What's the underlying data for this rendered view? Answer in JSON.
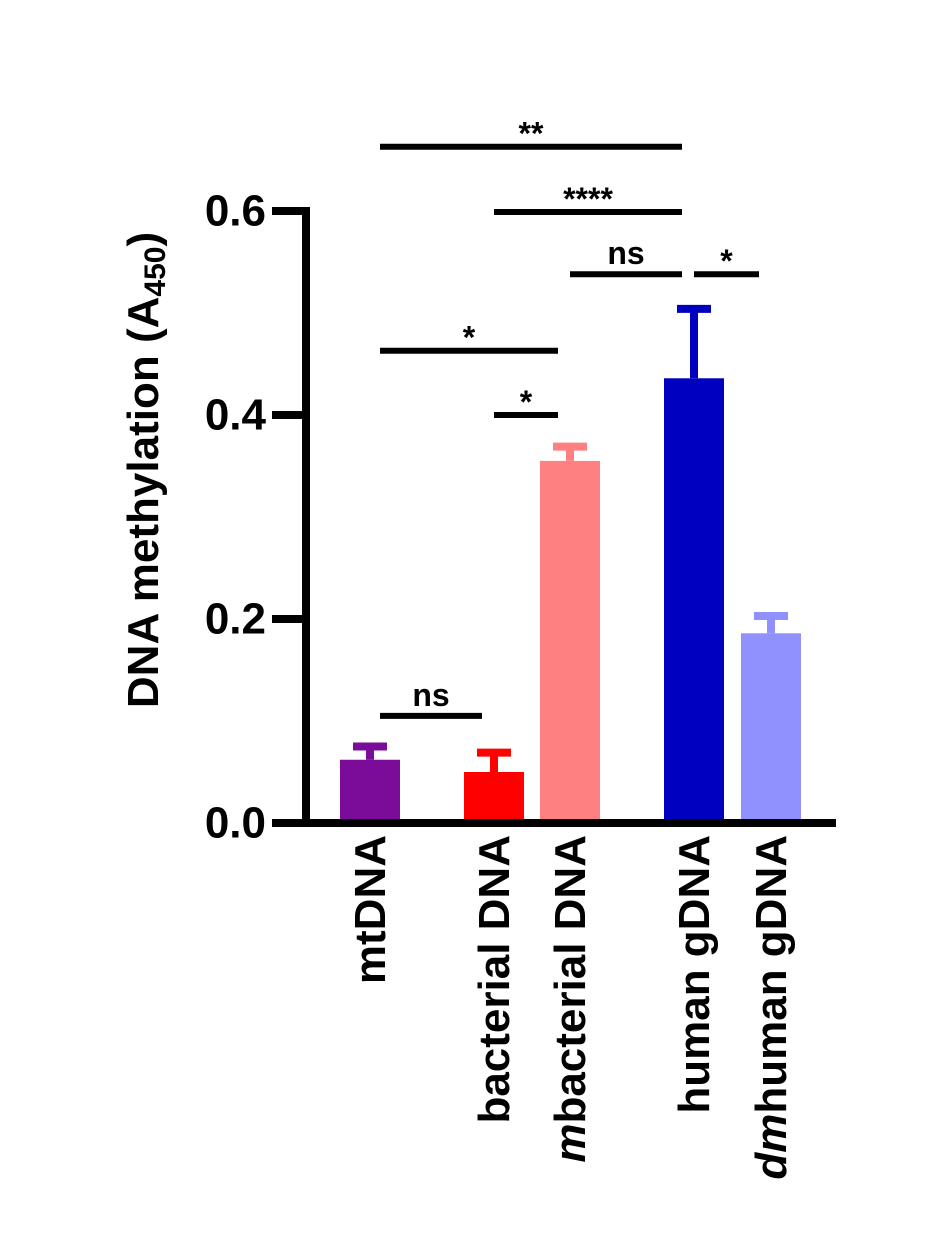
{
  "chart_data": {
    "type": "bar",
    "title": "",
    "ylabel": {
      "main": "DNA methylation (A",
      "sub": "450",
      "close": ")"
    },
    "xlabel": "",
    "ylim": [
      0,
      0.6
    ],
    "yticks": [
      "0.0",
      "0.2",
      "0.4",
      "0.6"
    ],
    "categories": [
      {
        "label": "mtDNA",
        "prefix": ""
      },
      {
        "label": "bacterial DNA",
        "prefix": ""
      },
      {
        "label": "bacterial DNA",
        "prefix": "m"
      },
      {
        "label": "human gDNA",
        "prefix": ""
      },
      {
        "label": "human gDNA",
        "prefix": "dm"
      }
    ],
    "values": [
      0.062,
      0.05,
      0.355,
      0.436,
      0.186
    ],
    "errors": [
      0.013,
      0.019,
      0.014,
      0.068,
      0.017
    ],
    "colors": [
      "#7b0c9a",
      "#ff0000",
      "#ff8080",
      "#0000c0",
      "#9090ff"
    ],
    "significance": [
      {
        "label": "**",
        "from": 0,
        "to": 3,
        "level": 0.663
      },
      {
        "label": "****",
        "from": 1,
        "to": 3,
        "level": 0.599
      },
      {
        "label": "ns",
        "from": 2,
        "to": 3,
        "level": 0.538
      },
      {
        "label": "*",
        "from": 3,
        "to": 4,
        "level": 0.538
      },
      {
        "label": "*",
        "from": 0,
        "to": 2,
        "level": 0.463
      },
      {
        "label": "*",
        "from": 1,
        "to": 2,
        "level": 0.4
      },
      {
        "label": "ns",
        "from": 0,
        "to": 1,
        "level": 0.105
      }
    ]
  }
}
